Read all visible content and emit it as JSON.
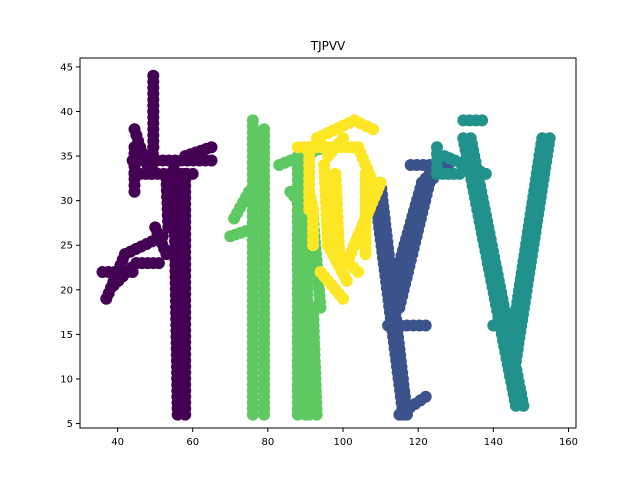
{
  "chart_data": {
    "type": "scatter",
    "title": "TJPVV",
    "xlabel": "",
    "ylabel": "",
    "xlim": [
      30,
      162
    ],
    "ylim": [
      4.5,
      46
    ],
    "xticks": [
      40,
      60,
      80,
      100,
      120,
      140,
      160
    ],
    "yticks": [
      5,
      10,
      15,
      20,
      25,
      30,
      35,
      40,
      45
    ],
    "grid": false,
    "legend": "none",
    "series": [
      {
        "color": "#440154",
        "polylines": [
          [
            [
              49.5,
              44
            ],
            [
              49.5,
              40
            ],
            [
              49.5,
              36
            ],
            [
              49,
              33
            ]
          ],
          [
            [
              44.5,
              38
            ],
            [
              46,
              36
            ],
            [
              48,
              34
            ]
          ],
          [
            [
              44,
              34.5
            ],
            [
              65,
              34.5
            ]
          ],
          [
            [
              44.5,
              33
            ],
            [
              60,
              33
            ]
          ],
          [
            [
              44.5,
              31
            ],
            [
              44.5,
              36
            ]
          ],
          [
            [
              65,
              36
            ],
            [
              58,
              35
            ]
          ],
          [
            [
              55,
              33.5
            ],
            [
              56,
              6
            ]
          ],
          [
            [
              53,
              32.5
            ],
            [
              53.5,
              27
            ]
          ],
          [
            [
              58,
              33
            ],
            [
              58,
              6
            ]
          ],
          [
            [
              37,
              19
            ],
            [
              42,
              24
            ],
            [
              52,
              26
            ]
          ],
          [
            [
              39,
              20.5
            ],
            [
              45,
              23
            ],
            [
              51,
              23
            ]
          ],
          [
            [
              53,
              24
            ],
            [
              50,
              27
            ]
          ],
          [
            [
              36,
              22
            ],
            [
              44,
              22
            ]
          ]
        ]
      },
      {
        "color": "#3b528b",
        "polylines": [
          [
            [
              110,
              32
            ],
            [
              117,
              6
            ]
          ],
          [
            [
              109,
              29
            ],
            [
              116,
              6
            ]
          ],
          [
            [
              113,
              20
            ],
            [
              121,
              32
            ],
            [
              125,
              34
            ]
          ],
          [
            [
              115,
              18
            ],
            [
              123,
              32
            ],
            [
              127,
              34
            ]
          ],
          [
            [
              118,
              34
            ],
            [
              128,
              34
            ]
          ],
          [
            [
              112,
              16
            ],
            [
              122,
              16
            ]
          ],
          [
            [
              115,
              6
            ],
            [
              122,
              8
            ]
          ]
        ]
      },
      {
        "color": "#21918c",
        "polylines": [
          [
            [
              132,
              39
            ],
            [
              137,
              39
            ]
          ],
          [
            [
              132,
              37
            ],
            [
              146,
              7
            ]
          ],
          [
            [
              134,
              37
            ],
            [
              148,
              7
            ]
          ],
          [
            [
              144,
              12
            ],
            [
              153,
              37
            ]
          ],
          [
            [
              146,
              12
            ],
            [
              155,
              37
            ]
          ],
          [
            [
              125,
              36
            ],
            [
              125,
              33
            ],
            [
              131,
              33
            ]
          ],
          [
            [
              127,
              35
            ],
            [
              138,
              33
            ]
          ],
          [
            [
              140,
              16
            ],
            [
              147,
              16
            ]
          ]
        ]
      },
      {
        "color": "#5ec962",
        "polylines": [
          [
            [
              76,
              39
            ],
            [
              76,
              6
            ]
          ],
          [
            [
              79,
              38
            ],
            [
              79,
              6
            ]
          ],
          [
            [
              71,
              28
            ],
            [
              75,
              31
            ],
            [
              78,
              31
            ]
          ],
          [
            [
              70,
              26
            ],
            [
              77,
              27
            ]
          ],
          [
            [
              88,
              35
            ],
            [
              88,
              6
            ]
          ],
          [
            [
              90,
              33
            ],
            [
              91,
              6
            ]
          ],
          [
            [
              92,
              18
            ],
            [
              93,
              6
            ]
          ],
          [
            [
              86,
              31
            ],
            [
              92,
              28
            ],
            [
              94,
              18
            ]
          ],
          [
            [
              88,
              24
            ],
            [
              90,
              6
            ]
          ],
          [
            [
              83,
              34
            ],
            [
              95,
              36
            ]
          ]
        ]
      },
      {
        "color": "#fde725",
        "polylines": [
          [
            [
              91,
              29
            ],
            [
              91,
              36
            ]
          ],
          [
            [
              88,
              36
            ],
            [
              104,
              36
            ],
            [
              109,
              31
            ]
          ],
          [
            [
              93,
              37
            ],
            [
              103,
              39
            ],
            [
              108,
              38
            ]
          ],
          [
            [
              96,
              35
            ],
            [
              100,
              37
            ]
          ],
          [
            [
              95,
              34
            ],
            [
              96,
              25
            ],
            [
              101,
              21
            ]
          ],
          [
            [
              98,
              33
            ],
            [
              99,
              24
            ],
            [
              104,
              22
            ]
          ],
          [
            [
              101,
              23
            ],
            [
              107,
              29
            ]
          ],
          [
            [
              103,
              25
            ],
            [
              109,
              31
            ],
            [
              110,
              32
            ]
          ],
          [
            [
              106,
              33
            ],
            [
              106,
              24
            ]
          ],
          [
            [
              91,
              31
            ],
            [
              92,
              29
            ],
            [
              92,
              25
            ]
          ],
          [
            [
              94,
              22
            ],
            [
              100,
              19
            ]
          ]
        ]
      }
    ]
  }
}
